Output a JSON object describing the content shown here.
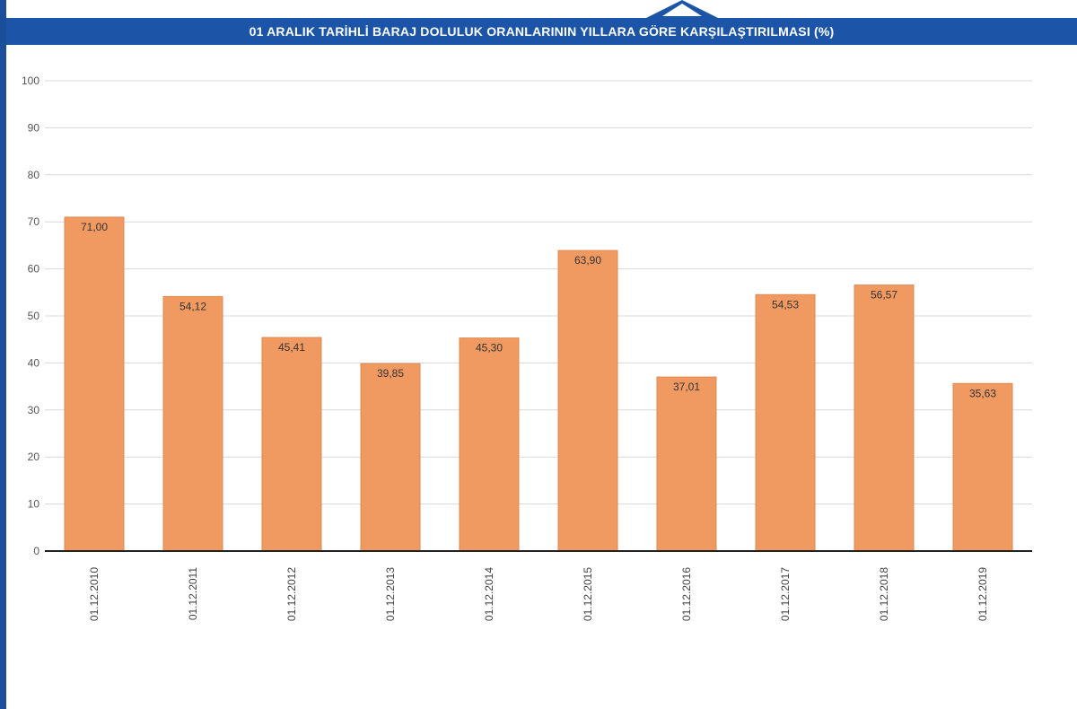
{
  "header": {
    "title": "01 ARALIK TARİHLİ BARAJ DOLULUK ORANLARININ YILLARA GÖRE KARŞILAŞTIRILMASI (%)"
  },
  "colors": {
    "bar": "#f09a62",
    "bar_stroke": "#e08a52",
    "title_bar": "#1c55a8",
    "grid": "#d8d8d8",
    "axis": "#222222"
  },
  "chart_data": {
    "type": "bar",
    "title": "01 ARALIK TARİHLİ BARAJ DOLULUK ORANLARININ YILLARA GÖRE KARŞILAŞTIRILMASI (%)",
    "categories": [
      "01.12.2010",
      "01.12.2011",
      "01.12.2012",
      "01.12.2013",
      "01.12.2014",
      "01.12.2015",
      "01.12.2016",
      "01.12.2017",
      "01.12.2018",
      "01.12.2019"
    ],
    "values": [
      71.0,
      54.12,
      45.41,
      39.85,
      45.3,
      63.9,
      37.01,
      54.53,
      56.57,
      35.63
    ],
    "value_labels": [
      "71,00",
      "54,12",
      "45,41",
      "39,85",
      "45,30",
      "63,90",
      "37,01",
      "54,53",
      "56,57",
      "35,63"
    ],
    "yticks": [
      "0",
      "10",
      "20",
      "30",
      "40",
      "50",
      "60",
      "70",
      "80",
      "90",
      "100"
    ],
    "ylim": [
      0,
      100
    ],
    "xlabel": "",
    "ylabel": "",
    "grid": true,
    "legend": "none"
  }
}
